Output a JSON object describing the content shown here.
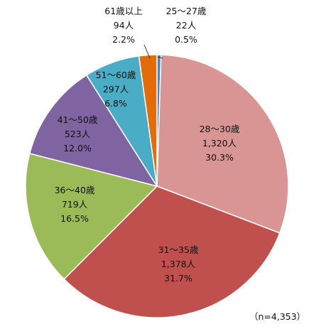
{
  "chart_data": {
    "type": "pie",
    "title": "",
    "sample_note": "（n=4,353）",
    "slices": [
      {
        "category": "25～27歳",
        "count_label": "22人",
        "percent_label": "0.5%",
        "percent": 0.5,
        "color": "#4f81bd"
      },
      {
        "category": "28～30歳",
        "count_label": "1,320人",
        "percent_label": "30.3%",
        "percent": 30.3,
        "color": "#d99594"
      },
      {
        "category": "31～35歳",
        "count_label": "1,378人",
        "percent_label": "31.7%",
        "percent": 31.7,
        "color": "#c0504d"
      },
      {
        "category": "36～40歳",
        "count_label": "719人",
        "percent_label": "16.5%",
        "percent": 16.5,
        "color": "#9bbb59"
      },
      {
        "category": "41～50歳",
        "count_label": "523人",
        "percent_label": "12.0%",
        "percent": 12.0,
        "color": "#8064a2"
      },
      {
        "category": "51～60歳",
        "count_label": "297人",
        "percent_label": "6.8%",
        "percent": 6.8,
        "color": "#4bacc6"
      },
      {
        "category": "61歳以上",
        "count_label": "94人",
        "percent_label": "2.2%",
        "percent": 2.2,
        "color": "#e36c09"
      }
    ]
  }
}
